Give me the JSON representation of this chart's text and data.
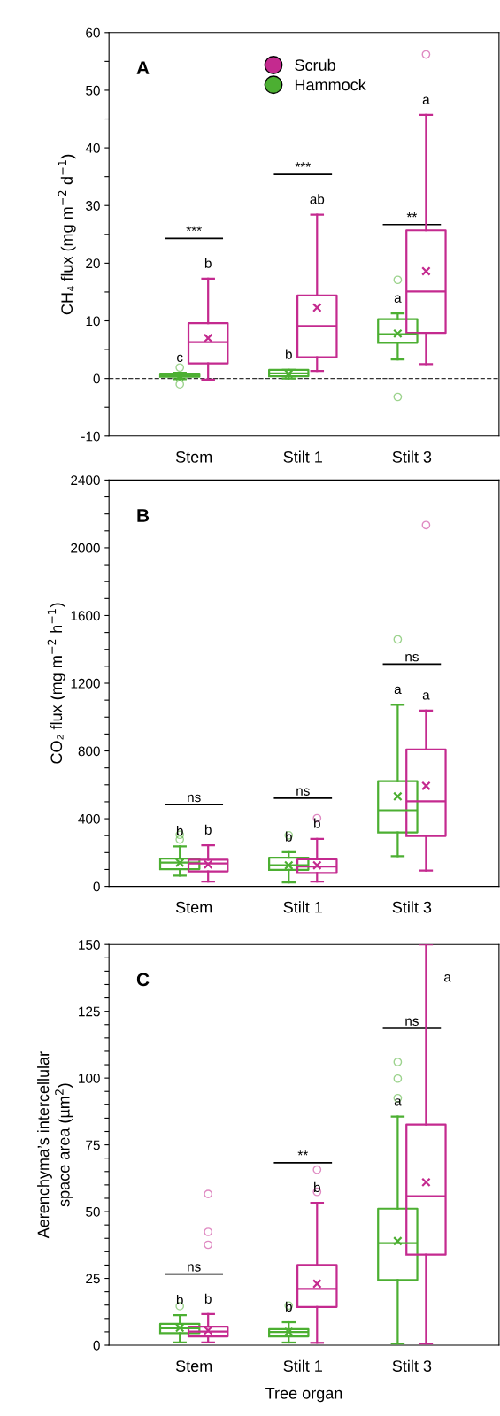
{
  "chart_data": [
    {
      "type": "box",
      "categories": [
        "Stem",
        "Stilt 1",
        "Stilt 3"
      ],
      "ylabel": "CH₄ flux (mg m$^{−2}$ d$^{−1}$)",
      "ylim": [
        -10,
        60
      ],
      "yticks": [
        -10,
        {
          "value": -5,
          "label": null
        },
        0,
        {
          "value": 5,
          "label": null
        },
        10,
        {
          "value": 15,
          "label": null
        },
        20,
        {
          "value": 25,
          "label": null
        },
        30,
        {
          "value": 35,
          "label": null
        },
        40,
        {
          "value": 45,
          "label": null
        },
        50,
        {
          "value": 55,
          "label": null
        },
        60
      ],
      "legend": "top",
      "grid": false,
      "marker": "circle",
      "ref_lines": [
        {
          "axis": "y",
          "value": 0,
          "color": "#333333",
          "line_style": "dashed"
        }
      ],
      "annotations": [
        "A",
        "***",
        "***",
        "**"
      ],
      "series": [
        {
          "name": "Hammock",
          "color": "#4caf32",
          "value_labels": [
            "c",
            "b",
            "a"
          ],
          "boxes": [
            {
              "low": -0.1,
              "q1": 0.3,
              "median": 0.5,
              "q3": 0.7,
              "high": 1.0,
              "mean": 0.4,
              "outliers": [
                1.9,
                -1.0
              ]
            },
            {
              "low": 0.0,
              "q1": 0.4,
              "median": 0.9,
              "q3": 1.5,
              "high": 1.5,
              "mean": 0.8
            },
            {
              "low": 3.3,
              "q1": 6.2,
              "median": 7.7,
              "q3": 10.3,
              "high": 11.3,
              "mean": 7.8,
              "outliers": [
                -3.2,
                17.1
              ]
            }
          ]
        },
        {
          "name": "Scrub",
          "color": "#c42a8f",
          "value_labels": [
            "b",
            "ab",
            "a"
          ],
          "boxes": [
            {
              "low": -0.2,
              "q1": 2.6,
              "median": 6.3,
              "q3": 9.6,
              "high": 17.3,
              "mean": 7.0
            },
            {
              "low": 1.3,
              "q1": 3.7,
              "median": 9.1,
              "q3": 14.4,
              "high": 28.4,
              "mean": 12.3
            },
            {
              "low": 2.5,
              "q1": 7.9,
              "median": 15.1,
              "q3": 25.7,
              "high": 45.7,
              "mean": 18.6,
              "outliers": [
                56.2
              ]
            }
          ]
        }
      ]
    },
    {
      "type": "box",
      "categories": [
        "Stem",
        "Stilt 1",
        "Stilt 3"
      ],
      "ylabel": "CO₂ flux (mg m$^{−2}$ h$^{−1}$)",
      "ylim": [
        0,
        2400
      ],
      "yticks": [
        0,
        {
          "value": 100,
          "label": null
        },
        {
          "value": 200,
          "label": null
        },
        {
          "value": 300,
          "label": null
        },
        400,
        {
          "value": 500,
          "label": null
        },
        {
          "value": 600,
          "label": null
        },
        {
          "value": 700,
          "label": null
        },
        800,
        {
          "value": 900,
          "label": null
        },
        {
          "value": 1000,
          "label": null
        },
        {
          "value": 1100,
          "label": null
        },
        1200,
        {
          "value": 1300,
          "label": null
        },
        {
          "value": 1400,
          "label": null
        },
        {
          "value": 1500,
          "label": null
        },
        1600,
        {
          "value": 1700,
          "label": null
        },
        {
          "value": 1800,
          "label": null
        },
        {
          "value": 1900,
          "label": null
        },
        2000,
        {
          "value": 2100,
          "label": null
        },
        {
          "value": 2200,
          "label": null
        },
        {
          "value": 2300,
          "label": null
        },
        2400
      ],
      "grid": false,
      "marker": "circle",
      "annotations": [
        "B",
        "ns",
        "ns",
        "ns"
      ],
      "series": [
        {
          "color": "#4caf32",
          "value_labels": [
            "b",
            "b",
            "a"
          ],
          "boxes": [
            {
              "low": 64,
              "q1": 102,
              "median": 141,
              "q3": 164,
              "high": 236,
              "mean": 140,
              "outliers": [
                305,
                277
              ]
            },
            {
              "low": 23,
              "q1": 98,
              "median": 126,
              "q3": 170,
              "high": 202,
              "mean": 125,
              "outliers": [
                302
              ]
            },
            {
              "low": 179,
              "q1": 319,
              "median": 450,
              "q3": 622,
              "high": 1073,
              "mean": 532,
              "outliers": [
                1459
              ]
            }
          ]
        },
        {
          "color": "#c42a8f",
          "value_labels": [
            "b",
            "b",
            "a"
          ],
          "boxes": [
            {
              "low": 28,
              "q1": 89,
              "median": 136,
              "q3": 158,
              "high": 243,
              "mean": 130
            },
            {
              "low": 28,
              "q1": 79,
              "median": 117,
              "q3": 160,
              "high": 281,
              "mean": 125,
              "outliers": [
                403
              ]
            },
            {
              "low": 94,
              "q1": 298,
              "median": 503,
              "q3": 809,
              "high": 1039,
              "mean": 594,
              "outliers": [
                2134
              ]
            }
          ]
        }
      ]
    },
    {
      "type": "box",
      "categories": [
        "Stem",
        "Stilt 1",
        "Stilt 3"
      ],
      "ylabel": "Aerenchyma’s intercellular\nspace area (µm$^{2}$)",
      "xlabel": "Tree organ",
      "ylim": [
        0,
        150
      ],
      "yticks": [
        0,
        {
          "value": 5,
          "label": null
        },
        {
          "value": 10,
          "label": null
        },
        {
          "value": 15,
          "label": null
        },
        {
          "value": 20,
          "label": null
        },
        25,
        {
          "value": 30,
          "label": null
        },
        {
          "value": 35,
          "label": null
        },
        {
          "value": 40,
          "label": null
        },
        {
          "value": 45,
          "label": null
        },
        50,
        {
          "value": 55,
          "label": null
        },
        {
          "value": 60,
          "label": null
        },
        {
          "value": 65,
          "label": null
        },
        {
          "value": 70,
          "label": null
        },
        75,
        {
          "value": 80,
          "label": null
        },
        {
          "value": 85,
          "label": null
        },
        {
          "value": 90,
          "label": null
        },
        {
          "value": 95,
          "label": null
        },
        100,
        {
          "value": 105,
          "label": null
        },
        {
          "value": 110,
          "label": null
        },
        {
          "value": 115,
          "label": null
        },
        {
          "value": 120,
          "label": null
        },
        125,
        {
          "value": 130,
          "label": null
        },
        {
          "value": 135,
          "label": null
        },
        {
          "value": 140,
          "label": null
        },
        {
          "value": 145,
          "label": null
        },
        150
      ],
      "grid": false,
      "marker": "circle",
      "annotations": [
        "C",
        "ns",
        "**",
        "ns"
      ],
      "series": [
        {
          "color": "#4caf32",
          "value_labels": [
            "b",
            "b",
            "a"
          ],
          "boxes": [
            {
              "low": 1.0,
              "q1": 4.5,
              "median": 6.3,
              "q3": 8.0,
              "high": 11.2,
              "mean": 6.5,
              "outliers": [
                14.6
              ]
            },
            {
              "low": 1.0,
              "q1": 3.3,
              "median": 4.9,
              "q3": 6.0,
              "high": 8.6,
              "mean": 5.0,
              "outliers": [
                14.8
              ]
            },
            {
              "low": 0.6,
              "q1": 24.4,
              "median": 38.2,
              "q3": 51.1,
              "high": 85.6,
              "mean": 39.0,
              "outliers": [
                92.5,
                99.8,
                106
              ]
            }
          ]
        },
        {
          "color": "#c42a8f",
          "value_labels": [
            "b",
            "b",
            "a"
          ],
          "boxes": [
            {
              "low": 1.0,
              "q1": 3.3,
              "median": 5.1,
              "q3": 6.9,
              "high": 11.6,
              "mean": 5.5,
              "outliers": [
                37.6,
                42.4,
                56.6
              ]
            },
            {
              "low": 0.9,
              "q1": 14.3,
              "median": 21.1,
              "q3": 30.0,
              "high": 53.3,
              "mean": 23.0,
              "outliers": [
                57.4,
                65.7
              ]
            },
            {
              "low": 0.6,
              "q1": 33.9,
              "median": 55.8,
              "q3": 82.6,
              "high": 150,
              "mean": 61.0
            }
          ]
        }
      ]
    }
  ]
}
